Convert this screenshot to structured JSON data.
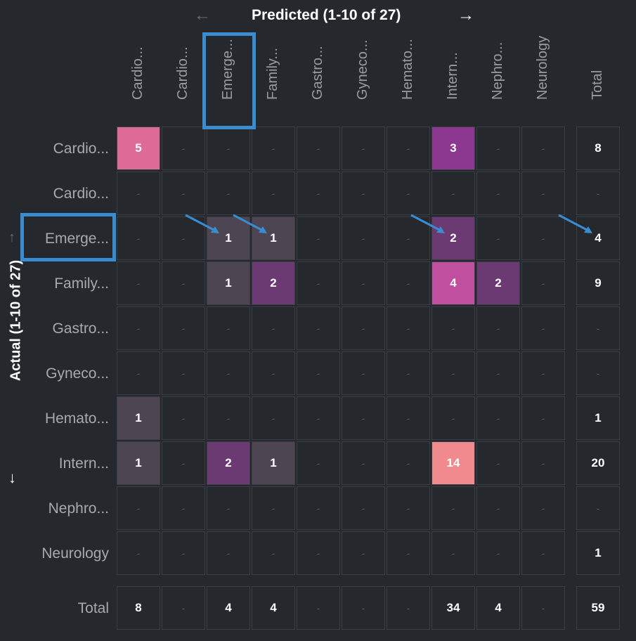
{
  "chart_data": {
    "type": "heatmap",
    "title_x": "Predicted (1-10 of 27)",
    "title_y": "Actual (1-10 of 27)",
    "columns": [
      "Cardio...",
      "Cardio...",
      "Emerge...",
      "Family...",
      "Gastro...",
      "Gyneco...",
      "Hemato...",
      "Intern...",
      "Nephro...",
      "Neurology"
    ],
    "rows": [
      "Cardio...",
      "Cardio...",
      "Emerge...",
      "Family...",
      "Gastro...",
      "Gyneco...",
      "Hemato...",
      "Intern...",
      "Nephro...",
      "Neurology"
    ],
    "total_label": "Total",
    "empty_symbol": "-",
    "values": [
      [
        5,
        null,
        null,
        null,
        null,
        null,
        null,
        3,
        null,
        null
      ],
      [
        null,
        null,
        null,
        null,
        null,
        null,
        null,
        null,
        null,
        null
      ],
      [
        null,
        null,
        1,
        1,
        null,
        null,
        null,
        2,
        null,
        null
      ],
      [
        null,
        null,
        1,
        2,
        null,
        null,
        null,
        4,
        2,
        null
      ],
      [
        null,
        null,
        null,
        null,
        null,
        null,
        null,
        null,
        null,
        null
      ],
      [
        null,
        null,
        null,
        null,
        null,
        null,
        null,
        null,
        null,
        null
      ],
      [
        1,
        null,
        null,
        null,
        null,
        null,
        null,
        null,
        null,
        null
      ],
      [
        1,
        null,
        2,
        1,
        null,
        null,
        null,
        14,
        null,
        null
      ],
      [
        null,
        null,
        null,
        null,
        null,
        null,
        null,
        null,
        null,
        null
      ],
      [
        null,
        null,
        null,
        null,
        null,
        null,
        null,
        null,
        null,
        null
      ]
    ],
    "row_totals": [
      8,
      null,
      4,
      9,
      null,
      null,
      1,
      20,
      null,
      1
    ],
    "col_totals": [
      8,
      null,
      4,
      4,
      null,
      null,
      null,
      34,
      4,
      null
    ],
    "grand_total": 59,
    "color_scale": [
      "#4e4552",
      "#6b3a72",
      "#8d3890",
      "#c0509f",
      "#de6a98",
      "#f08a8f"
    ]
  },
  "nav": {
    "prev_arrow": "←",
    "next_arrow": "→",
    "up_arrow": "↑",
    "down_arrow": "↓"
  },
  "highlight": {
    "color": "#3a8cd0",
    "column": "Emerge...",
    "row": "Emerge..."
  }
}
